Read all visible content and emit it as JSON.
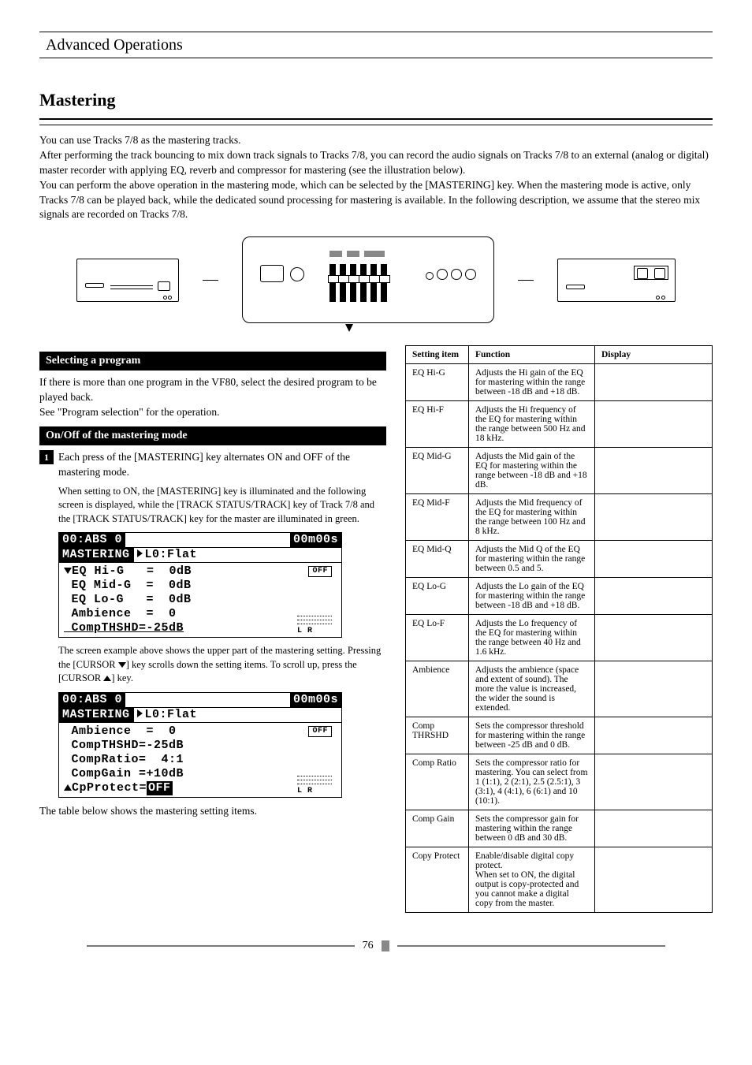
{
  "chapter_title": "Advanced Operations",
  "section_title": "Mastering",
  "intro": {
    "p1": "You can use Tracks 7/8 as the mastering tracks.",
    "p2": "After performing the track bouncing to mix down track signals to Tracks 7/8, you can record the audio signals on Tracks 7/8 to an external (analog or digital) master recorder with applying EQ, reverb and compressor for mastering (see the illustration below).",
    "p3_a": "You can perform the above operation in the mastering mode, which can be selected by the ",
    "p3_key": "[MASTERING]",
    "p3_b": " key. When the mastering mode is active, only Tracks 7/8 can be played back, while the dedicated sound processing for mastering is available. In the following description, we assume that the stereo mix signals are recorded on Tracks 7/8."
  },
  "section_select_title": "Selecting a program",
  "select_para": "If there is more than one program in the VF80, select the desired program to be played back.",
  "select_see": "See \"",
  "select_ref": "Program selection",
  "select_see_end": "\" for the operation.",
  "section_onoff_title": "On/Off of the mastering mode",
  "step1_num": "1",
  "step1_a": "Each press of the ",
  "step1_key": "[MASTERING]",
  "step1_b": " key alternates ON and OFF of the mastering mode.",
  "sub1_a": "When setting to ON, the ",
  "sub1_key1": "[MASTERING]",
  "sub1_b": " key is illuminated and the following screen is displayed, while the ",
  "sub1_key2": "[TRACK STATUS/TRACK]",
  "sub1_c": " key of Track 7/8 and the ",
  "sub1_key3": "[TRACK STATUS/TRACK]",
  "sub1_d": " key for the master are illuminated in green.",
  "lcd1": {
    "top_left": "00:ABS 0",
    "top_right": "00m00s",
    "header": "MASTERING",
    "preset": "L0:Flat",
    "l1": "EQ Hi-G   =  0dB",
    "l2": "EQ Mid-G  =  0dB",
    "l3": "EQ Lo-G   =  0dB",
    "l4": "Ambience  =  0",
    "l5": "CompTHSHD=-25dB",
    "badge": "OFF",
    "meter_lr": "L   R"
  },
  "scroll_para_a": "The screen example above shows the upper part of the mastering setting. Pressing the ",
  "scroll_key1": "[CURSOR ",
  "scroll_para_b": "] key scrolls down the setting items. To scroll up, press the ",
  "scroll_key2": "[CURSOR ",
  "scroll_para_c": "] key.",
  "lcd2": {
    "top_left": "00:ABS 0",
    "top_right": "00m00s",
    "header": "MASTERING",
    "preset": "L0:Flat",
    "l1": "Ambience  =  0",
    "l2": "CompTHSHD=-25dB",
    "l3": "CompRatio=  4:1",
    "l4": "CompGain =+10dB",
    "l5a": "CpProtect=",
    "l5b": "OFF",
    "badge": "OFF",
    "meter_lr": "L   R"
  },
  "table_intro": "The table below shows the mastering setting items.",
  "table": {
    "h1": "Setting item",
    "h2": "Function",
    "h3": "Display",
    "rows": [
      {
        "c1": "EQ Hi-G",
        "c2": "Adjusts the Hi gain of the EQ for mastering within the range between -18 dB and +18 dB.",
        "c3": ""
      },
      {
        "c1": "EQ Hi-F",
        "c2": "Adjusts the Hi frequency of the EQ for mastering within the range between 500 Hz and 18 kHz.",
        "c3": ""
      },
      {
        "c1": "EQ Mid-G",
        "c2": "Adjusts the Mid gain of the EQ for mastering within the range between -18 dB and +18 dB.",
        "c3": ""
      },
      {
        "c1": "EQ Mid-F",
        "c2": "Adjusts the Mid frequency of the EQ for mastering within the range between 100 Hz and 8 kHz.",
        "c3": ""
      },
      {
        "c1": "EQ Mid-Q",
        "c2": "Adjusts the Mid Q of the EQ for mastering within the range between 0.5 and 5.",
        "c3": ""
      },
      {
        "c1": "EQ Lo-G",
        "c2": "Adjusts the Lo gain of the EQ for mastering within the range between -18 dB and +18 dB.",
        "c3": ""
      },
      {
        "c1": "EQ Lo-F",
        "c2": "Adjusts the Lo frequency of the EQ for mastering within the range between 40 Hz and 1.6 kHz.",
        "c3": ""
      },
      {
        "c1": "Ambience",
        "c2": "Adjusts the ambience (space and extent of sound). The more the value is increased, the wider the sound is extended.",
        "c3": ""
      },
      {
        "c1": "Comp THRSHD",
        "c2": "Sets the compressor threshold for mastering within the range between -25 dB and 0 dB.",
        "c3": ""
      },
      {
        "c1": "Comp Ratio",
        "c2": "Sets the compressor ratio for mastering. You can select from 1 (1:1), 2 (2:1), 2.5 (2.5:1), 3 (3:1), 4 (4:1), 6 (6:1) and 10 (10:1).",
        "c3": ""
      },
      {
        "c1": "Comp Gain",
        "c2": "Sets the compressor gain for mastering within the range between 0 dB and 30 dB.",
        "c3": ""
      },
      {
        "c1": "Copy Protect",
        "c2": "Enable/disable digital copy protect.\nWhen set to ON, the digital output is copy-protected and you cannot make a digital copy from the master.",
        "c3": ""
      }
    ]
  },
  "page_number": "76"
}
